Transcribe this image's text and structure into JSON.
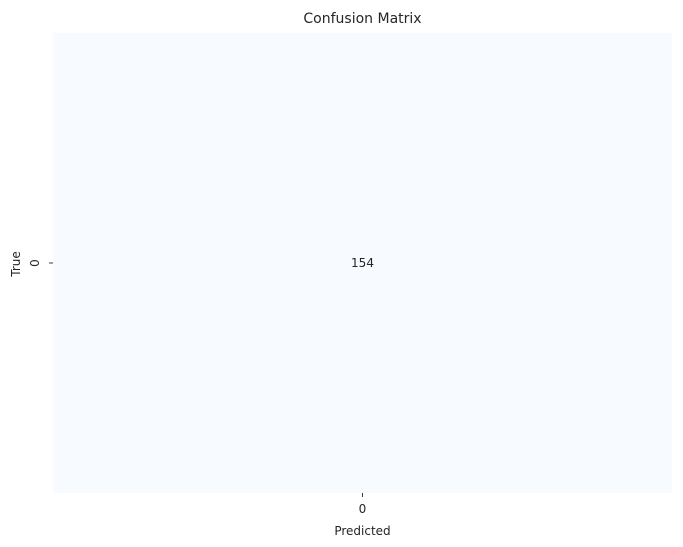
{
  "chart_data": {
    "type": "heatmap",
    "title": "Confusion Matrix",
    "xlabel": "Predicted",
    "ylabel": "True",
    "x_categories": [
      "0"
    ],
    "y_categories": [
      "0"
    ],
    "values": [
      [
        154
      ]
    ],
    "colormap": "Blues",
    "cell_color": "#f7fbff",
    "annotation_color": "#262626",
    "colorbar": false,
    "grid": false
  }
}
